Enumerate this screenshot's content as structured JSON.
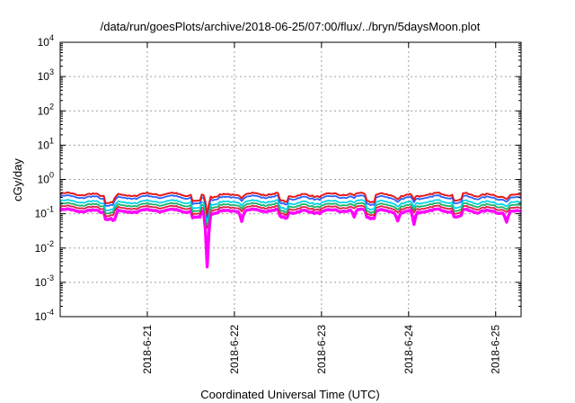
{
  "chart_data": {
    "type": "line",
    "title": "/data/run/goesPlots/archive/2018-06-25/07:00/flux/../bryn/5daysMoon.plot",
    "xlabel": "Coordinated Universal Time (UTC)",
    "ylabel": "cGy/day",
    "yscale": "log",
    "ylim": [
      "1e-4",
      "1e4"
    ],
    "xlim": [
      "2018-06-20 00:00",
      "2018-06-25 07:00"
    ],
    "xticks": [
      "2018-6-21",
      "2018-6-22",
      "2018-6-23",
      "2018-6-24",
      "2018-6-25"
    ],
    "yticks": [
      {
        "base": "10",
        "exp": "-4",
        "value": 0.0001
      },
      {
        "base": "10",
        "exp": "-3",
        "value": 0.001
      },
      {
        "base": "10",
        "exp": "-2",
        "value": 0.01
      },
      {
        "base": "10",
        "exp": "-1",
        "value": 0.1
      },
      {
        "base": "10",
        "exp": "0",
        "value": 1
      },
      {
        "base": "10",
        "exp": "1",
        "value": 10
      },
      {
        "base": "10",
        "exp": "2",
        "value": 100
      },
      {
        "base": "10",
        "exp": "3",
        "value": 1000
      },
      {
        "base": "10",
        "exp": "4",
        "value": 10000
      }
    ],
    "grid": true,
    "series": [
      {
        "color": "#ff00ff",
        "baseline": 0.12,
        "dips": [
          {
            "x": "2018-06-21 16:30",
            "y": 0.003
          },
          {
            "x": "2018-06-20 15:00",
            "y": 0.07
          },
          {
            "x": "2018-06-22 02:00",
            "y": 0.06
          },
          {
            "x": "2018-06-23 09:00",
            "y": 0.07
          },
          {
            "x": "2018-06-23 21:00",
            "y": 0.07
          },
          {
            "x": "2018-06-24 01:30",
            "y": 0.05
          },
          {
            "x": "2018-06-25 03:00",
            "y": 0.06
          }
        ]
      },
      {
        "color": "#dd1f3f",
        "baseline": 0.15
      },
      {
        "color": "#19b36b",
        "baseline": 0.18
      },
      {
        "color": "#00d5e6",
        "baseline": 0.22
      },
      {
        "color": "#2a62ff",
        "baseline": 0.3
      },
      {
        "color": "#e41a1c",
        "baseline": 0.36
      }
    ]
  }
}
